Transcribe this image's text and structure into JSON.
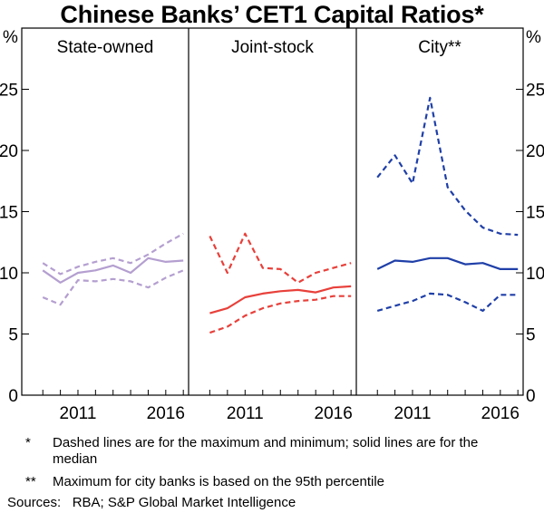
{
  "chart_data": {
    "type": "line",
    "title": "Chinese Banks’ CET1 Capital Ratios*",
    "y_unit_left": "%",
    "y_unit_right": "%",
    "ylim": [
      0,
      30
    ],
    "yticks": [
      0,
      5,
      10,
      15,
      20,
      25
    ],
    "x_tick_labels": [
      "2011",
      "2016"
    ],
    "xlim": [
      2007.8,
      2017.3
    ],
    "grid": false,
    "panels": [
      {
        "name": "State-owned",
        "color": "#b49fd0",
        "series": [
          {
            "name": "Maximum",
            "style": "dashed",
            "x": [
              2009,
              2010,
              2011,
              2012,
              2013,
              2014,
              2015,
              2016,
              2017
            ],
            "y": [
              10.8,
              9.9,
              10.5,
              10.9,
              11.2,
              10.8,
              11.5,
              12.4,
              13.2
            ]
          },
          {
            "name": "Median",
            "style": "solid",
            "x": [
              2009,
              2010,
              2011,
              2012,
              2013,
              2014,
              2015,
              2016,
              2017
            ],
            "y": [
              10.2,
              9.2,
              10.0,
              10.2,
              10.6,
              10.0,
              11.2,
              10.9,
              11.0
            ]
          },
          {
            "name": "Minimum",
            "style": "dashed",
            "x": [
              2009,
              2010,
              2011,
              2012,
              2013,
              2014,
              2015,
              2016,
              2017
            ],
            "y": [
              8.0,
              7.4,
              9.4,
              9.3,
              9.5,
              9.3,
              8.8,
              9.6,
              10.2
            ]
          }
        ]
      },
      {
        "name": "Joint-stock",
        "color": "#e8403a",
        "series": [
          {
            "name": "Maximum",
            "style": "dashed",
            "x": [
              2009,
              2010,
              2011,
              2012,
              2013,
              2014,
              2015,
              2016,
              2017
            ],
            "y": [
              13.0,
              10.0,
              13.2,
              10.4,
              10.3,
              9.2,
              10.0,
              10.4,
              10.8
            ]
          },
          {
            "name": "Median",
            "style": "solid",
            "x": [
              2009,
              2010,
              2011,
              2012,
              2013,
              2014,
              2015,
              2016,
              2017
            ],
            "y": [
              6.7,
              7.1,
              8.0,
              8.3,
              8.5,
              8.6,
              8.4,
              8.8,
              8.9
            ]
          },
          {
            "name": "Minimum",
            "style": "dashed",
            "x": [
              2009,
              2010,
              2011,
              2012,
              2013,
              2014,
              2015,
              2016,
              2017
            ],
            "y": [
              5.1,
              5.6,
              6.5,
              7.1,
              7.5,
              7.7,
              7.8,
              8.1,
              8.1
            ]
          }
        ]
      },
      {
        "name": "City**",
        "color": "#1f3fa8",
        "series": [
          {
            "name": "Maximum",
            "style": "dashed",
            "x": [
              2009,
              2010,
              2011,
              2012,
              2013,
              2014,
              2015,
              2016,
              2017
            ],
            "y": [
              17.8,
              19.6,
              17.3,
              24.3,
              17.0,
              15.1,
              13.7,
              13.2,
              13.1
            ]
          },
          {
            "name": "Median",
            "style": "solid",
            "x": [
              2009,
              2010,
              2011,
              2012,
              2013,
              2014,
              2015,
              2016,
              2017
            ],
            "y": [
              10.3,
              11.0,
              10.9,
              11.2,
              11.2,
              10.7,
              10.8,
              10.3,
              10.3
            ]
          },
          {
            "name": "Minimum",
            "style": "dashed",
            "x": [
              2009,
              2010,
              2011,
              2012,
              2013,
              2014,
              2015,
              2016,
              2017
            ],
            "y": [
              6.9,
              7.3,
              7.7,
              8.3,
              8.2,
              7.6,
              6.9,
              8.2,
              8.2
            ]
          }
        ]
      }
    ]
  },
  "notes": [
    {
      "mark": "*",
      "text": "Dashed lines are for the maximum and minimum; solid lines are for the median"
    },
    {
      "mark": "**",
      "text": "Maximum for city banks is based on the 95th percentile"
    }
  ],
  "source": "Sources:   RBA; S&P Global Market Intelligence"
}
